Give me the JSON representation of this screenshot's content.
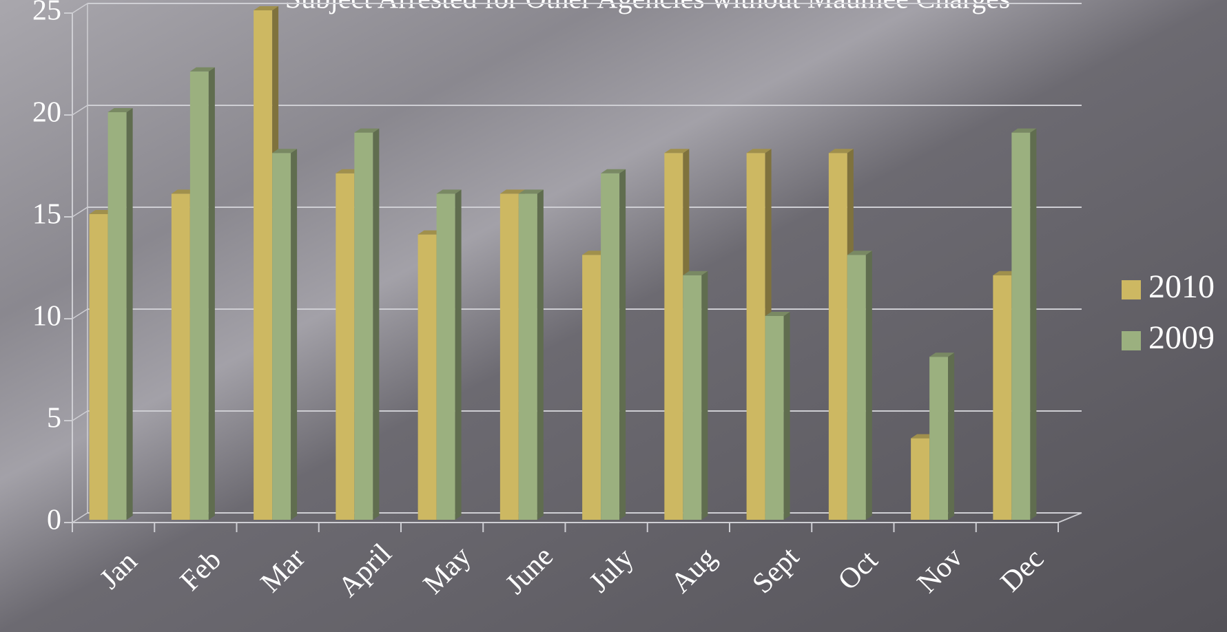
{
  "chart_data": {
    "type": "bar",
    "title": "Subject Arrested for Other Agencies without Maumee Charges",
    "categories": [
      "Jan",
      "Feb",
      "Mar",
      "April",
      "May",
      "June",
      "July",
      "Aug",
      "Sept",
      "Oct",
      "Nov",
      "Dec"
    ],
    "series": [
      {
        "name": "2010",
        "color": "#cdb862",
        "values": [
          15,
          16,
          25,
          17,
          14,
          16,
          13,
          18,
          18,
          18,
          4,
          12
        ]
      },
      {
        "name": "2009",
        "color": "#9bb07f",
        "values": [
          20,
          22,
          18,
          19,
          16,
          16,
          17,
          12,
          10,
          13,
          8,
          19
        ]
      }
    ],
    "ylim": [
      0,
      25
    ],
    "yticks": [
      0,
      5,
      10,
      15,
      20,
      25
    ],
    "grid": true,
    "legend": "right"
  }
}
